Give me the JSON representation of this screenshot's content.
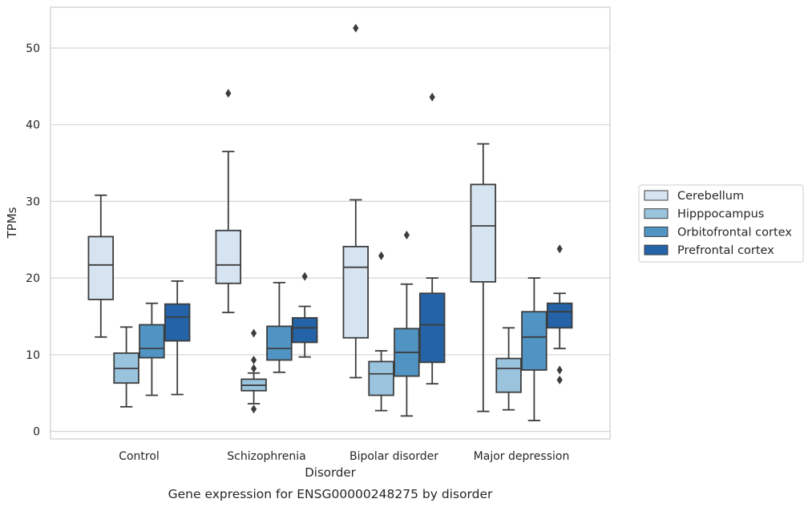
{
  "chart_data": {
    "type": "box",
    "title": "",
    "caption": "Gene expression for ENSG00000248275 by disorder",
    "xlabel": "Disorder",
    "ylabel": "TPMs",
    "ylim": [
      -0.9,
      55.4
    ],
    "yticks": [
      0,
      10,
      20,
      30,
      40,
      50
    ],
    "grid": "horizontal",
    "legend_position": "right",
    "categories": [
      "Control",
      "Schizophrenia",
      "Bipolar disorder",
      "Major depression"
    ],
    "series": [
      {
        "name": "Cerebellum",
        "color": "#d6e4f2",
        "boxes": [
          {
            "whisker_low": 12.3,
            "q1": 17.2,
            "median": 21.7,
            "q3": 25.4,
            "whisker_high": 30.8,
            "outliers": []
          },
          {
            "whisker_low": 15.5,
            "q1": 19.3,
            "median": 21.7,
            "q3": 26.2,
            "whisker_high": 36.5,
            "outliers": [
              44.1
            ]
          },
          {
            "whisker_low": 7.0,
            "q1": 12.2,
            "median": 21.4,
            "q3": 24.1,
            "whisker_high": 30.2,
            "outliers": [
              52.6
            ]
          },
          {
            "whisker_low": 2.6,
            "q1": 19.5,
            "median": 26.8,
            "q3": 32.2,
            "whisker_high": 37.5,
            "outliers": []
          }
        ]
      },
      {
        "name": "Hipppocampus",
        "color": "#9ac4de",
        "boxes": [
          {
            "whisker_low": 3.2,
            "q1": 6.3,
            "median": 8.2,
            "q3": 10.2,
            "whisker_high": 13.6,
            "outliers": []
          },
          {
            "whisker_low": 3.6,
            "q1": 5.3,
            "median": 6.0,
            "q3": 6.8,
            "whisker_high": 7.6,
            "outliers": [
              2.9,
              8.2,
              9.3,
              12.8
            ]
          },
          {
            "whisker_low": 2.7,
            "q1": 4.7,
            "median": 7.5,
            "q3": 9.1,
            "whisker_high": 10.5,
            "outliers": [
              22.9
            ]
          },
          {
            "whisker_low": 2.8,
            "q1": 5.1,
            "median": 8.2,
            "q3": 9.5,
            "whisker_high": 13.5,
            "outliers": []
          }
        ]
      },
      {
        "name": "Orbitofrontal cortex",
        "color": "#5094c4",
        "boxes": [
          {
            "whisker_low": 4.7,
            "q1": 9.6,
            "median": 10.8,
            "q3": 13.9,
            "whisker_high": 16.7,
            "outliers": []
          },
          {
            "whisker_low": 7.7,
            "q1": 9.3,
            "median": 10.8,
            "q3": 13.7,
            "whisker_high": 19.4,
            "outliers": []
          },
          {
            "whisker_low": 2.0,
            "q1": 7.2,
            "median": 10.3,
            "q3": 13.4,
            "whisker_high": 19.2,
            "outliers": [
              25.6
            ]
          },
          {
            "whisker_low": 1.4,
            "q1": 8.0,
            "median": 12.3,
            "q3": 15.6,
            "whisker_high": 20.0,
            "outliers": []
          }
        ]
      },
      {
        "name": "Prefrontal cortex",
        "color": "#2463a7",
        "boxes": [
          {
            "whisker_low": 4.8,
            "q1": 11.8,
            "median": 14.9,
            "q3": 16.6,
            "whisker_high": 19.6,
            "outliers": []
          },
          {
            "whisker_low": 9.7,
            "q1": 11.6,
            "median": 13.5,
            "q3": 14.8,
            "whisker_high": 16.3,
            "outliers": [
              20.2
            ]
          },
          {
            "whisker_low": 6.2,
            "q1": 9.0,
            "median": 13.9,
            "q3": 18.0,
            "whisker_high": 20.0,
            "outliers": [
              43.6
            ]
          },
          {
            "whisker_low": 10.8,
            "q1": 13.5,
            "median": 15.6,
            "q3": 16.7,
            "whisker_high": 18.0,
            "outliers": [
              6.7,
              8.0,
              23.8
            ]
          }
        ]
      }
    ]
  }
}
